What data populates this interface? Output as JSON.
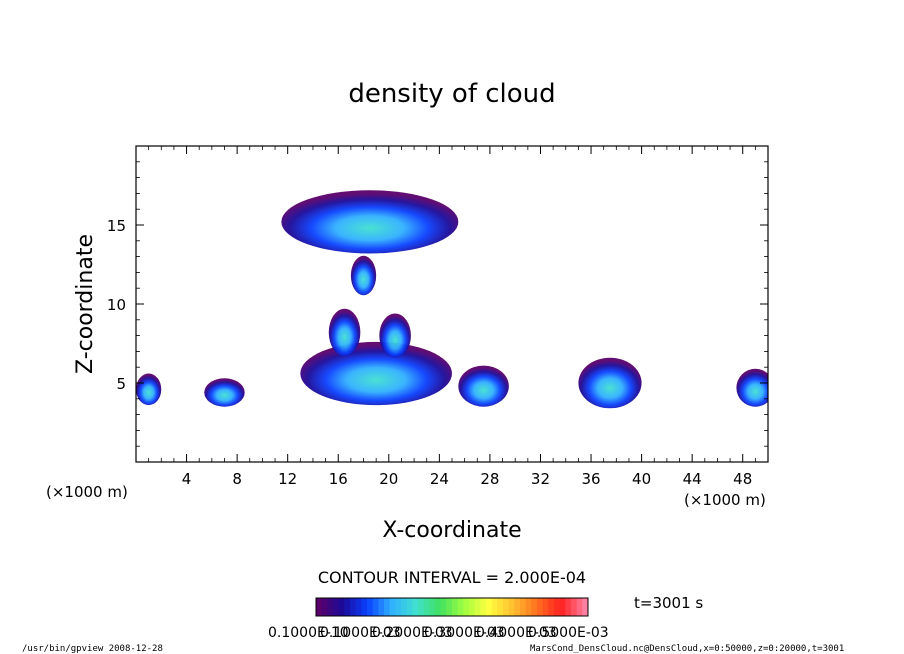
{
  "chart_data": {
    "type": "heatmap",
    "title": "density of cloud",
    "xlabel": "X-coordinate",
    "ylabel": "Z-coordinate",
    "x_unit_left": "(×1000 m)",
    "x_unit_right": "(×1000 m)",
    "xlim": [
      0,
      50
    ],
    "ylim": [
      0,
      20
    ],
    "x_ticks": [
      4,
      8,
      12,
      16,
      20,
      24,
      28,
      32,
      36,
      40,
      44,
      48
    ],
    "y_ticks": [
      5,
      10,
      15
    ],
    "contour_interval_text": "CONTOUR INTERVAL = 2.000E-04",
    "time_label": "t=3001 s",
    "colorbar": {
      "labels": [
        "0.1000E-10",
        "0.1000E-03",
        "0.2000E-03",
        "0.3000E-03",
        "0.4000E-03",
        "0.5000E-03"
      ],
      "colors": [
        "#5a006a",
        "#1a0a9a",
        "#0a40ff",
        "#30b0ff",
        "#40e0d0",
        "#40e060",
        "#a0ff40",
        "#ffff40",
        "#ffc030",
        "#ff7020",
        "#ff2020",
        "#ff80a0"
      ]
    },
    "cloud_regions": [
      {
        "x_center": 1,
        "z_center": 4.6,
        "width": 2,
        "height": 2
      },
      {
        "x_center": 7,
        "z_center": 4.4,
        "width": 3.2,
        "height": 1.8
      },
      {
        "x_center": 19,
        "z_center": 5.6,
        "width": 12,
        "height": 4
      },
      {
        "x_center": 16.5,
        "z_center": 8.2,
        "width": 2.5,
        "height": 3
      },
      {
        "x_center": 20.5,
        "z_center": 8.0,
        "width": 2.5,
        "height": 2.8
      },
      {
        "x_center": 18.5,
        "z_center": 15.2,
        "width": 14,
        "height": 4
      },
      {
        "x_center": 18,
        "z_center": 11.8,
        "width": 2,
        "height": 2.5
      },
      {
        "x_center": 27.5,
        "z_center": 4.8,
        "width": 4,
        "height": 2.6
      },
      {
        "x_center": 37.5,
        "z_center": 5.0,
        "width": 5,
        "height": 3.2
      },
      {
        "x_center": 49,
        "z_center": 4.7,
        "width": 3,
        "height": 2.4
      }
    ]
  },
  "footer": {
    "left": "/usr/bin/gpview  2008-12-28",
    "right": "MarsCond_DensCloud.nc@DensCloud,x=0:50000,z=0:20000,t=3001"
  }
}
